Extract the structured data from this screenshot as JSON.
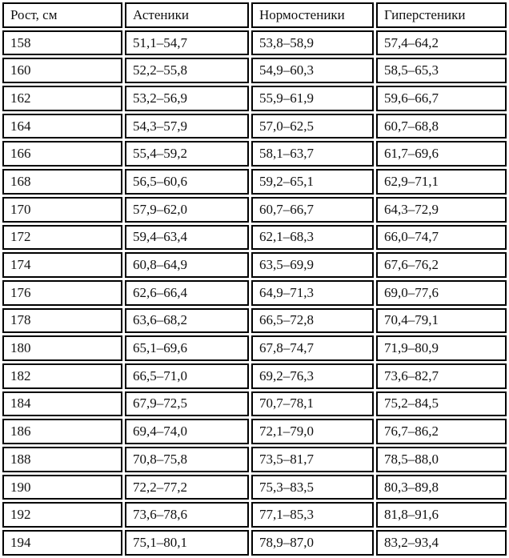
{
  "table": {
    "header": [
      "Рост, см",
      "Астеники",
      "Нормостеники",
      "Гиперстеники"
    ],
    "rows": [
      [
        "158",
        "51,1–54,7",
        "53,8–58,9",
        "57,4–64,2"
      ],
      [
        "160",
        "52,2–55,8",
        "54,9–60,3",
        "58,5–65,3"
      ],
      [
        "162",
        "53,2–56,9",
        "55,9–61,9",
        "59,6–66,7"
      ],
      [
        "164",
        "54,3–57,9",
        "57,0–62,5",
        "60,7–68,8"
      ],
      [
        "166",
        "55,4–59,2",
        "58,1–63,7",
        "61,7–69,6"
      ],
      [
        "168",
        "56,5–60,6",
        "59,2–65,1",
        "62,9–71,1"
      ],
      [
        "170",
        "57,9–62,0",
        "60,7–66,7",
        "64,3–72,9"
      ],
      [
        "172",
        "59,4–63,4",
        "62,1–68,3",
        "66,0–74,7"
      ],
      [
        "174",
        "60,8–64,9",
        "63,5–69,9",
        "67,6–76,2"
      ],
      [
        "176",
        "62,6–66,4",
        "64,9–71,3",
        "69,0–77,6"
      ],
      [
        "178",
        "63,6–68,2",
        "66,5–72,8",
        "70,4–79,1"
      ],
      [
        "180",
        "65,1–69,6",
        "67,8–74,7",
        "71,9–80,9"
      ],
      [
        "182",
        "66,5–71,0",
        "69,2–76,3",
        "73,6–82,7"
      ],
      [
        "184",
        "67,9–72,5",
        "70,7–78,1",
        "75,2–84,5"
      ],
      [
        "186",
        "69,4–74,0",
        "72,1–79,0",
        "76,7–86,2"
      ],
      [
        "188",
        "70,8–75,8",
        "73,5–81,7",
        "78,5–88,0"
      ],
      [
        "190",
        "72,2–77,2",
        "75,3–83,5",
        "80,3–89,8"
      ],
      [
        "192",
        "73,6–78,6",
        "77,1–85,3",
        "81,8–91,6"
      ],
      [
        "194",
        "75,1–80,1",
        "78,9–87,0",
        "83,2–93,4"
      ]
    ]
  }
}
